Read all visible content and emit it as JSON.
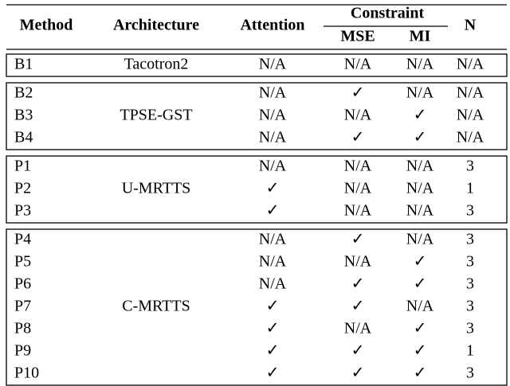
{
  "table": {
    "header": {
      "method": "Method",
      "architecture": "Architecture",
      "attention": "Attention",
      "constraint": "Constraint",
      "mse": "MSE",
      "mi": "MI",
      "n": "N"
    },
    "groups": [
      {
        "architecture": "Tacotron2",
        "rows": [
          [
            "B1",
            "N/A",
            "N/A",
            "N/A",
            "N/A"
          ]
        ]
      },
      {
        "architecture": "TPSE-GST",
        "rows": [
          [
            "B2",
            "N/A",
            "✓",
            "N/A",
            "N/A"
          ],
          [
            "B3",
            "N/A",
            "N/A",
            "✓",
            "N/A"
          ],
          [
            "B4",
            "N/A",
            "✓",
            "✓",
            "N/A"
          ]
        ]
      },
      {
        "architecture": "U-MRTTS",
        "rows": [
          [
            "P1",
            "N/A",
            "N/A",
            "N/A",
            "3"
          ],
          [
            "P2",
            "✓",
            "N/A",
            "N/A",
            "1"
          ],
          [
            "P3",
            "✓",
            "N/A",
            "N/A",
            "3"
          ]
        ]
      },
      {
        "architecture": "C-MRTTS",
        "rows": [
          [
            "P4",
            "N/A",
            "✓",
            "N/A",
            "3"
          ],
          [
            "P5",
            "N/A",
            "N/A",
            "✓",
            "3"
          ],
          [
            "P6",
            "N/A",
            "✓",
            "✓",
            "3"
          ],
          [
            "P7",
            "✓",
            "✓",
            "N/A",
            "3"
          ],
          [
            "P8",
            "✓",
            "N/A",
            "✓",
            "3"
          ],
          [
            "P9",
            "✓",
            "✓",
            "✓",
            "1"
          ],
          [
            "P10",
            "✓",
            "✓",
            "✓",
            "3"
          ]
        ]
      }
    ]
  }
}
